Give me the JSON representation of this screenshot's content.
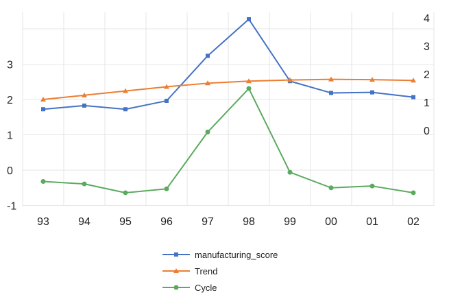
{
  "chart_data": {
    "type": "line",
    "title": "",
    "xlabel": "",
    "ylabel": "",
    "categories": [
      "93",
      "94",
      "95",
      "96",
      "97",
      "98",
      "99",
      "00",
      "01",
      "02"
    ],
    "left_axis": {
      "min": -1,
      "max": 4,
      "ticks": [
        "-1",
        "0",
        "1",
        "2",
        "3"
      ]
    },
    "right_axis": {
      "ticks": [
        "0",
        "1",
        "2",
        "3",
        "4"
      ]
    },
    "grid": true,
    "legend_position": "bottom",
    "series": [
      {
        "name": "manufacturing_score",
        "axis": "right",
        "color": "#4472C4",
        "marker": "square",
        "values": [
          0.75,
          0.88,
          0.75,
          1.05,
          2.65,
          3.95,
          1.75,
          1.33,
          1.35,
          1.18
        ]
      },
      {
        "name": "Trend",
        "axis": "left",
        "color": "#ED7D31",
        "marker": "triangle",
        "values": [
          2.0,
          2.12,
          2.24,
          2.36,
          2.46,
          2.52,
          2.55,
          2.57,
          2.56,
          2.54
        ]
      },
      {
        "name": "Cycle",
        "axis": "left",
        "color": "#5BAA5F",
        "marker": "circle",
        "values": [
          -0.32,
          -0.39,
          -0.64,
          -0.53,
          1.08,
          2.31,
          -0.06,
          -0.5,
          -0.45,
          -0.64
        ]
      }
    ]
  }
}
